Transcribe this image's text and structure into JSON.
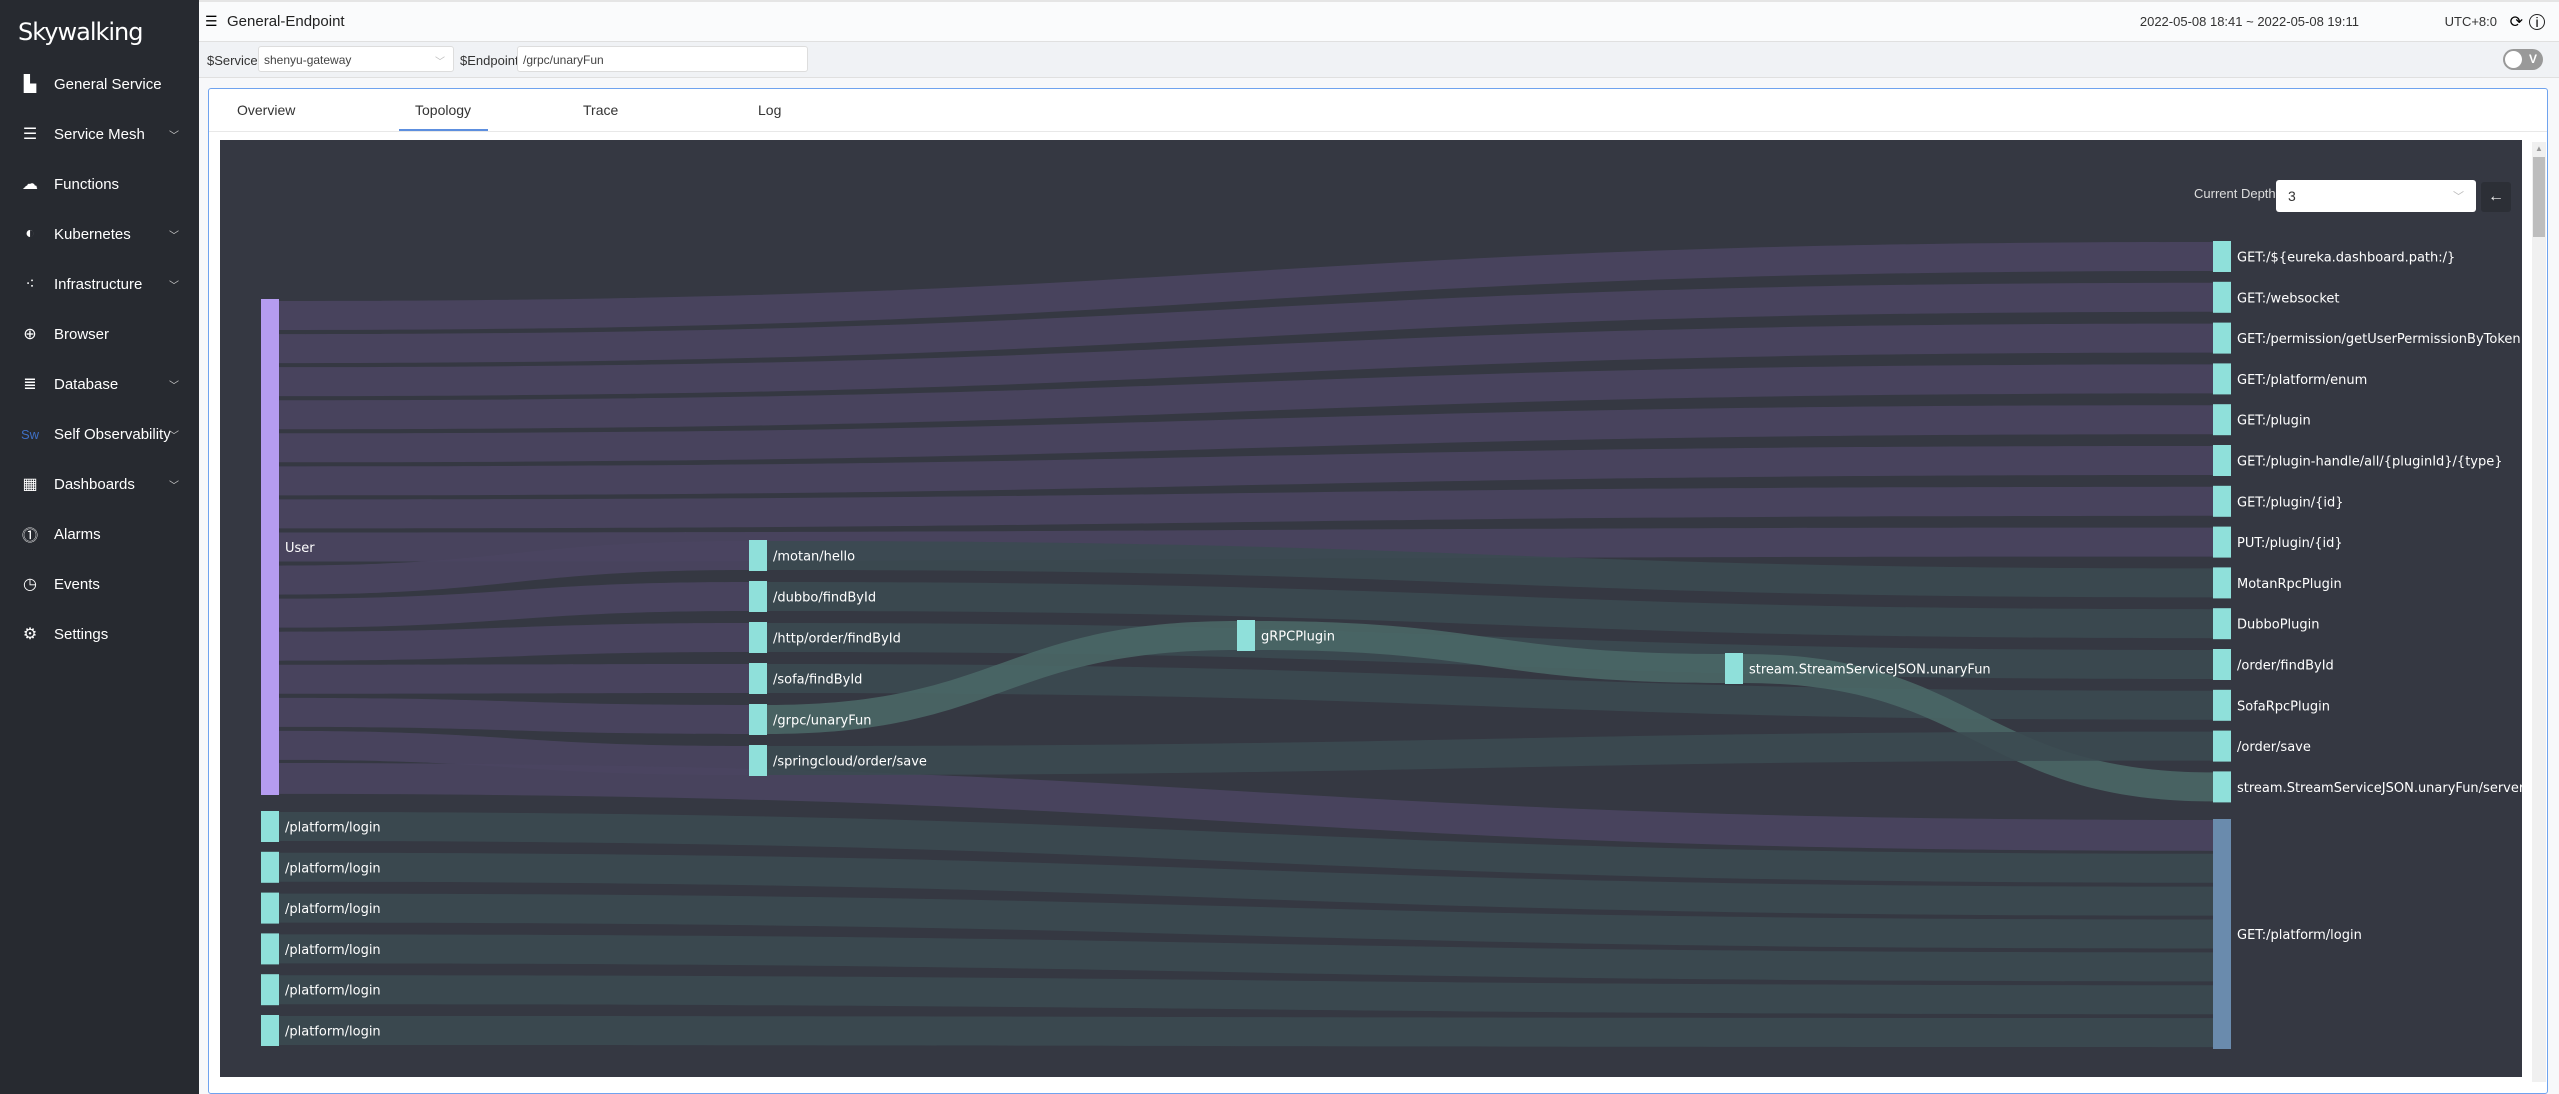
{
  "app": {
    "logo": "Skywalking"
  },
  "sidebar": {
    "items": [
      {
        "label": "General Service",
        "icon": "chart-icon",
        "expand": false
      },
      {
        "label": "Service Mesh",
        "icon": "server-icon",
        "expand": true
      },
      {
        "label": "Functions",
        "icon": "cloud-icon",
        "expand": false
      },
      {
        "label": "Kubernetes",
        "icon": "kubernetes-icon",
        "expand": true
      },
      {
        "label": "Infrastructure",
        "icon": "dots-icon",
        "expand": true
      },
      {
        "label": "Browser",
        "icon": "globe-icon",
        "expand": false
      },
      {
        "label": "Database",
        "icon": "database-icon",
        "expand": true
      },
      {
        "label": "Self Observability",
        "icon": "sw-icon",
        "expand": true
      },
      {
        "label": "Dashboards",
        "icon": "dashboard-icon",
        "expand": true
      },
      {
        "label": "Alarms",
        "icon": "alarm-icon",
        "expand": false
      },
      {
        "label": "Events",
        "icon": "events-icon",
        "expand": false
      },
      {
        "label": "Settings",
        "icon": "gear-icon",
        "expand": false
      }
    ]
  },
  "header": {
    "title": "General-Endpoint",
    "time_range": "2022-05-08 18:41 ~ 2022-05-08 19:11",
    "timezone": "UTC+8:0"
  },
  "filters": {
    "service_label": "$Service",
    "service_value": "shenyu-gateway",
    "endpoint_label": "$Endpoint",
    "endpoint_value": "/grpc/unaryFun",
    "toggle_label": "V"
  },
  "tabs": [
    {
      "label": "Overview"
    },
    {
      "label": "Topology",
      "active": true
    },
    {
      "label": "Trace"
    },
    {
      "label": "Log"
    }
  ],
  "topology": {
    "depth_label": "Current Depth",
    "depth_value": "3",
    "back_icon": "arrow-left-icon"
  },
  "colors": {
    "node": "#8fe0da",
    "user_node": "#b59cf0",
    "big_node": "#6a8bad",
    "user_link": "#4a4560",
    "link": "#3b4a51",
    "grpc_link": "#4a6766",
    "background": "#353842"
  },
  "sankey": {
    "nodes": [
      {
        "name": "User",
        "col": 0
      },
      {
        "name": "/platform/login",
        "col": 0
      },
      {
        "name": "/platform/login",
        "col": 0
      },
      {
        "name": "/platform/login",
        "col": 0
      },
      {
        "name": "/platform/login",
        "col": 0
      },
      {
        "name": "/platform/login",
        "col": 0
      },
      {
        "name": "/platform/login",
        "col": 0
      },
      {
        "name": "/motan/hello",
        "col": 1
      },
      {
        "name": "/dubbo/findById",
        "col": 1
      },
      {
        "name": "/http/order/findById",
        "col": 1
      },
      {
        "name": "/sofa/findById",
        "col": 1
      },
      {
        "name": "/grpc/unaryFun",
        "col": 1
      },
      {
        "name": "/springcloud/order/save",
        "col": 1
      },
      {
        "name": "gRPCPlugin",
        "col": 2
      },
      {
        "name": "stream.StreamServiceJSON.unaryFun",
        "col": 3
      },
      {
        "name": "GET:/${eureka.dashboard.path:/}",
        "col": 4
      },
      {
        "name": "GET:/websocket",
        "col": 4
      },
      {
        "name": "GET:/permission/getUserPermissionByToken",
        "col": 4
      },
      {
        "name": "GET:/platform/enum",
        "col": 4
      },
      {
        "name": "GET:/plugin",
        "col": 4
      },
      {
        "name": "GET:/plugin-handle/all/{pluginId}/{type}",
        "col": 4
      },
      {
        "name": "GET:/plugin/{id}",
        "col": 4
      },
      {
        "name": "PUT:/plugin/{id}",
        "col": 4
      },
      {
        "name": "MotanRpcPlugin",
        "col": 4
      },
      {
        "name": "DubboPlugin",
        "col": 4
      },
      {
        "name": "/order/findById",
        "col": 4
      },
      {
        "name": "SofaRpcPlugin",
        "col": 4
      },
      {
        "name": "/order/save",
        "col": 4
      },
      {
        "name": "stream.StreamServiceJSON.unaryFun/server/Reque",
        "col": 4
      },
      {
        "name": "GET:/platform/login",
        "col": 4
      }
    ],
    "links": [
      {
        "source": 0,
        "target": 15
      },
      {
        "source": 0,
        "target": 16
      },
      {
        "source": 0,
        "target": 17
      },
      {
        "source": 0,
        "target": 18
      },
      {
        "source": 0,
        "target": 19
      },
      {
        "source": 0,
        "target": 20
      },
      {
        "source": 0,
        "target": 21
      },
      {
        "source": 0,
        "target": 22
      },
      {
        "source": 0,
        "target": 7
      },
      {
        "source": 0,
        "target": 8
      },
      {
        "source": 0,
        "target": 9
      },
      {
        "source": 0,
        "target": 10
      },
      {
        "source": 0,
        "target": 11
      },
      {
        "source": 0,
        "target": 12
      },
      {
        "source": 0,
        "target": 29
      },
      {
        "source": 7,
        "target": 23
      },
      {
        "source": 8,
        "target": 24
      },
      {
        "source": 9,
        "target": 25
      },
      {
        "source": 10,
        "target": 26
      },
      {
        "source": 11,
        "target": 13
      },
      {
        "source": 13,
        "target": 14
      },
      {
        "source": 14,
        "target": 28
      },
      {
        "source": 12,
        "target": 27
      },
      {
        "source": 1,
        "target": 29
      },
      {
        "source": 2,
        "target": 29
      },
      {
        "source": 3,
        "target": 29
      },
      {
        "source": 4,
        "target": 29
      },
      {
        "source": 5,
        "target": 29
      },
      {
        "source": 6,
        "target": 29
      }
    ]
  }
}
